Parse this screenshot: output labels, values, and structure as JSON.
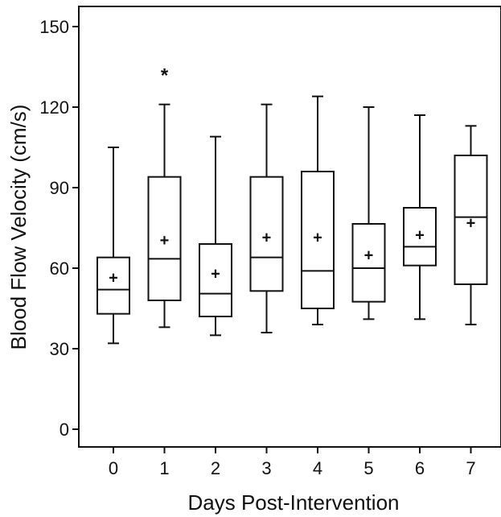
{
  "chart_data": {
    "type": "box",
    "title": "",
    "xlabel": "Days Post-Intervention",
    "ylabel": "Blood Flow Velocity (cm/s)",
    "ylim": [
      -10,
      158
    ],
    "yticks": [
      0,
      30,
      60,
      90,
      120,
      150
    ],
    "grid": false,
    "categories": [
      "0",
      "1",
      "2",
      "3",
      "4",
      "5",
      "6",
      "7"
    ],
    "boxes": [
      {
        "min": 32,
        "q1": 43,
        "median": 52,
        "q3": 64,
        "max": 105,
        "mean": 56.5,
        "outliers": []
      },
      {
        "min": 38,
        "q1": 48,
        "median": 63.5,
        "q3": 94,
        "max": 121,
        "mean": 70.5,
        "outliers": [
          132.5
        ]
      },
      {
        "min": 35,
        "q1": 42,
        "median": 50.5,
        "q3": 69,
        "max": 109,
        "mean": 58,
        "outliers": []
      },
      {
        "min": 36,
        "q1": 51.5,
        "median": 64,
        "q3": 94,
        "max": 121,
        "mean": 71.5,
        "outliers": []
      },
      {
        "min": 39,
        "q1": 45,
        "median": 59,
        "q3": 96,
        "max": 124,
        "mean": 71.5,
        "outliers": []
      },
      {
        "min": 41,
        "q1": 47.5,
        "median": 60,
        "q3": 76.5,
        "max": 120,
        "mean": 65,
        "outliers": []
      },
      {
        "min": 41,
        "q1": 61,
        "median": 68,
        "q3": 82.5,
        "max": 117,
        "mean": 72.5,
        "outliers": []
      },
      {
        "min": 39,
        "q1": 54,
        "median": 79,
        "q3": 102,
        "max": 113,
        "mean": 77,
        "outliers": []
      }
    ]
  }
}
